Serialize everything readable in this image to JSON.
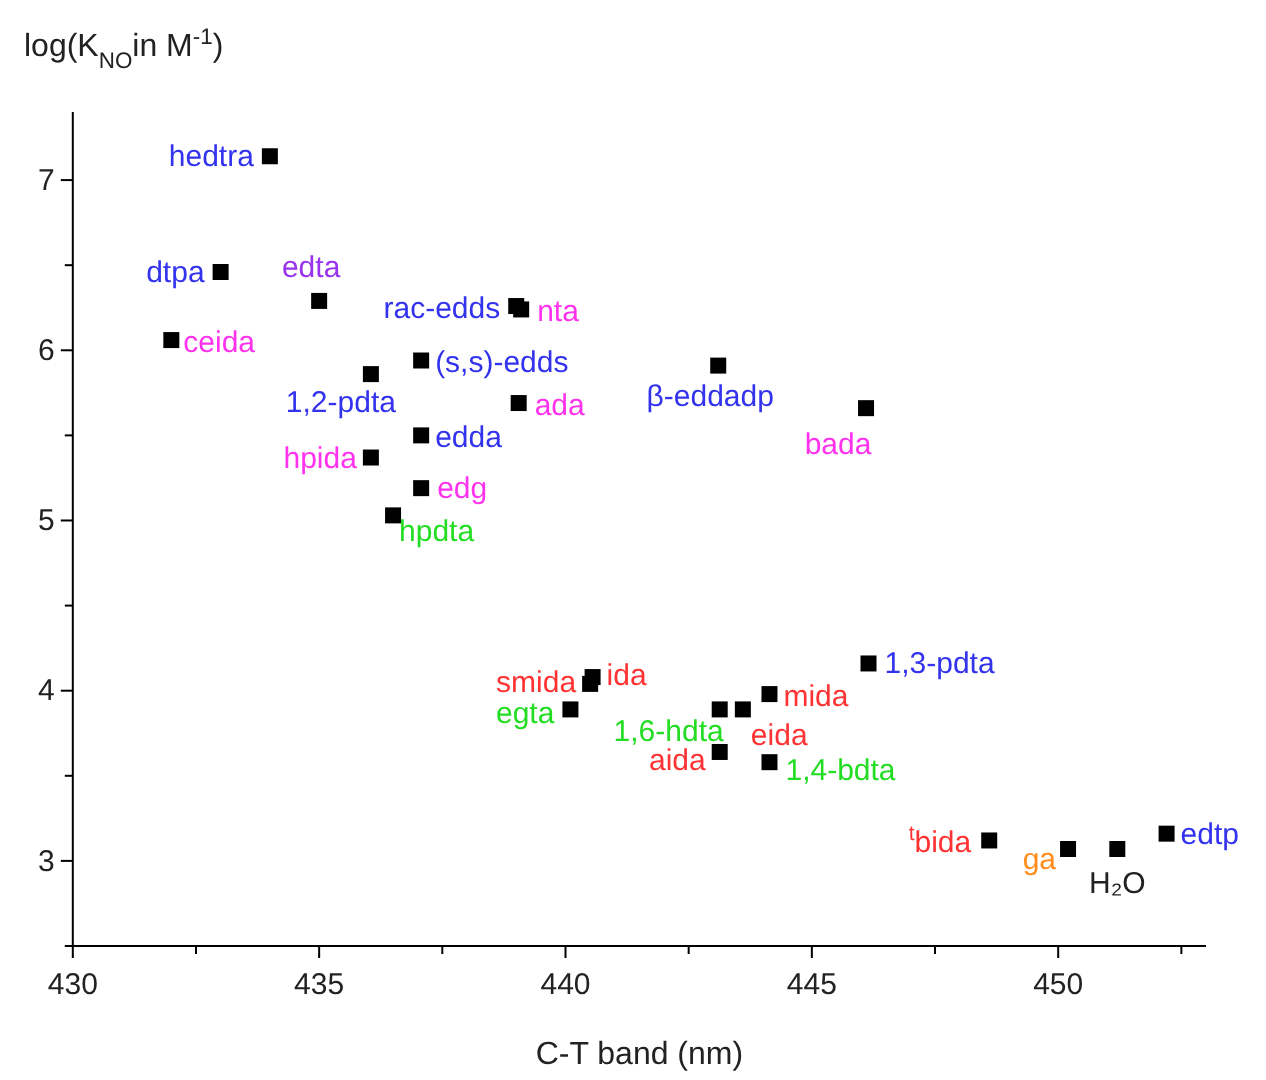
{
  "chart_data": {
    "type": "scatter",
    "xlabel": "C-T band (nm)",
    "ylabel": "log(K$_{NO}$in M$^{-1}$)",
    "xlim": [
      430,
      453
    ],
    "ylim": [
      2.5,
      7.4
    ],
    "xticks": [
      430,
      {
        "value": 432.5,
        "label": null
      },
      435,
      {
        "value": 437.5,
        "label": null
      },
      440,
      {
        "value": 442.5,
        "label": null
      },
      445,
      {
        "value": 447.5,
        "label": null
      },
      450,
      {
        "value": 452.5,
        "label": null
      }
    ],
    "yticks": [
      {
        "value": 2.5,
        "label": null
      },
      3,
      {
        "value": 3.5,
        "label": null
      },
      4,
      {
        "value": 4.5,
        "label": null
      },
      5,
      {
        "value": 5.5,
        "label": null
      },
      6,
      {
        "value": 6.5,
        "label": null
      },
      7
    ],
    "marker": "square",
    "grid": false,
    "series": [
      {
        "color": "#000000",
        "x": [
          434,
          433,
          435,
          439,
          439.1,
          432,
          436.05,
          437.07,
          439.05,
          443.1,
          446.1,
          437.07,
          436.05,
          437.07,
          436.5,
          440.5,
          440.55,
          440.1,
          443.13,
          443.6,
          444.14,
          446.15,
          443.13,
          444.14,
          448.6,
          450.2,
          451.2,
          452.2
        ],
        "values": [
          7.14,
          6.46,
          6.29,
          6.26,
          6.24,
          6.06,
          5.86,
          5.94,
          5.69,
          5.91,
          5.66,
          5.5,
          5.37,
          5.19,
          5.03,
          4.04,
          4.08,
          3.89,
          3.89,
          3.89,
          3.98,
          4.16,
          3.64,
          3.58,
          3.12,
          3.07,
          3.07,
          3.16
        ]
      }
    ],
    "annotations": [
      {
        "text": "hedtra",
        "x": 434,
        "y": 7.14
      },
      {
        "text": "dtpa",
        "x": 433,
        "y": 6.46
      },
      {
        "text": "edta",
        "x": 435,
        "y": 6.29
      },
      {
        "text": "rac-edds",
        "x": 439,
        "y": 6.26
      },
      {
        "text": "nta",
        "x": 439.1,
        "y": 6.24
      },
      {
        "text": "ceida",
        "x": 432,
        "y": 6.06
      },
      {
        "text": "1,2-pdta",
        "x": 436.05,
        "y": 5.86
      },
      {
        "text": "(s,s)-edds",
        "x": 437.07,
        "y": 5.94
      },
      {
        "text": "ada",
        "x": 439.05,
        "y": 5.69
      },
      {
        "text": "β-eddadp",
        "x": 443.1,
        "y": 5.91
      },
      {
        "text": "bada",
        "x": 446.1,
        "y": 5.66
      },
      {
        "text": "edda",
        "x": 437.07,
        "y": 5.5
      },
      {
        "text": "hpida",
        "x": 436.05,
        "y": 5.37
      },
      {
        "text": "edg",
        "x": 437.07,
        "y": 5.19
      },
      {
        "text": "hpdta",
        "x": 436.5,
        "y": 5.03
      },
      {
        "text": "smida",
        "x": 440.5,
        "y": 4.04
      },
      {
        "text": "ida",
        "x": 440.55,
        "y": 4.08
      },
      {
        "text": "egta",
        "x": 440.1,
        "y": 3.89
      },
      {
        "text": "1,6-hdta",
        "x": 443.13,
        "y": 3.89
      },
      {
        "text": "eida",
        "x": 443.6,
        "y": 3.89
      },
      {
        "text": "mida",
        "x": 444.14,
        "y": 3.98
      },
      {
        "text": "1,3-pdta",
        "x": 446.15,
        "y": 4.16
      },
      {
        "text": "aida",
        "x": 443.13,
        "y": 3.64
      },
      {
        "text": "1,4-bdta",
        "x": 444.14,
        "y": 3.58
      },
      {
        "text": "$^{t}$bida",
        "x": 448.6,
        "y": 3.12
      },
      {
        "text": "ga",
        "x": 450.2,
        "y": 3.07
      },
      {
        "text": "H₂O",
        "x": 451.2,
        "y": 3.07
      },
      {
        "text": "edtp",
        "x": 452.2,
        "y": 3.16
      }
    ]
  }
}
